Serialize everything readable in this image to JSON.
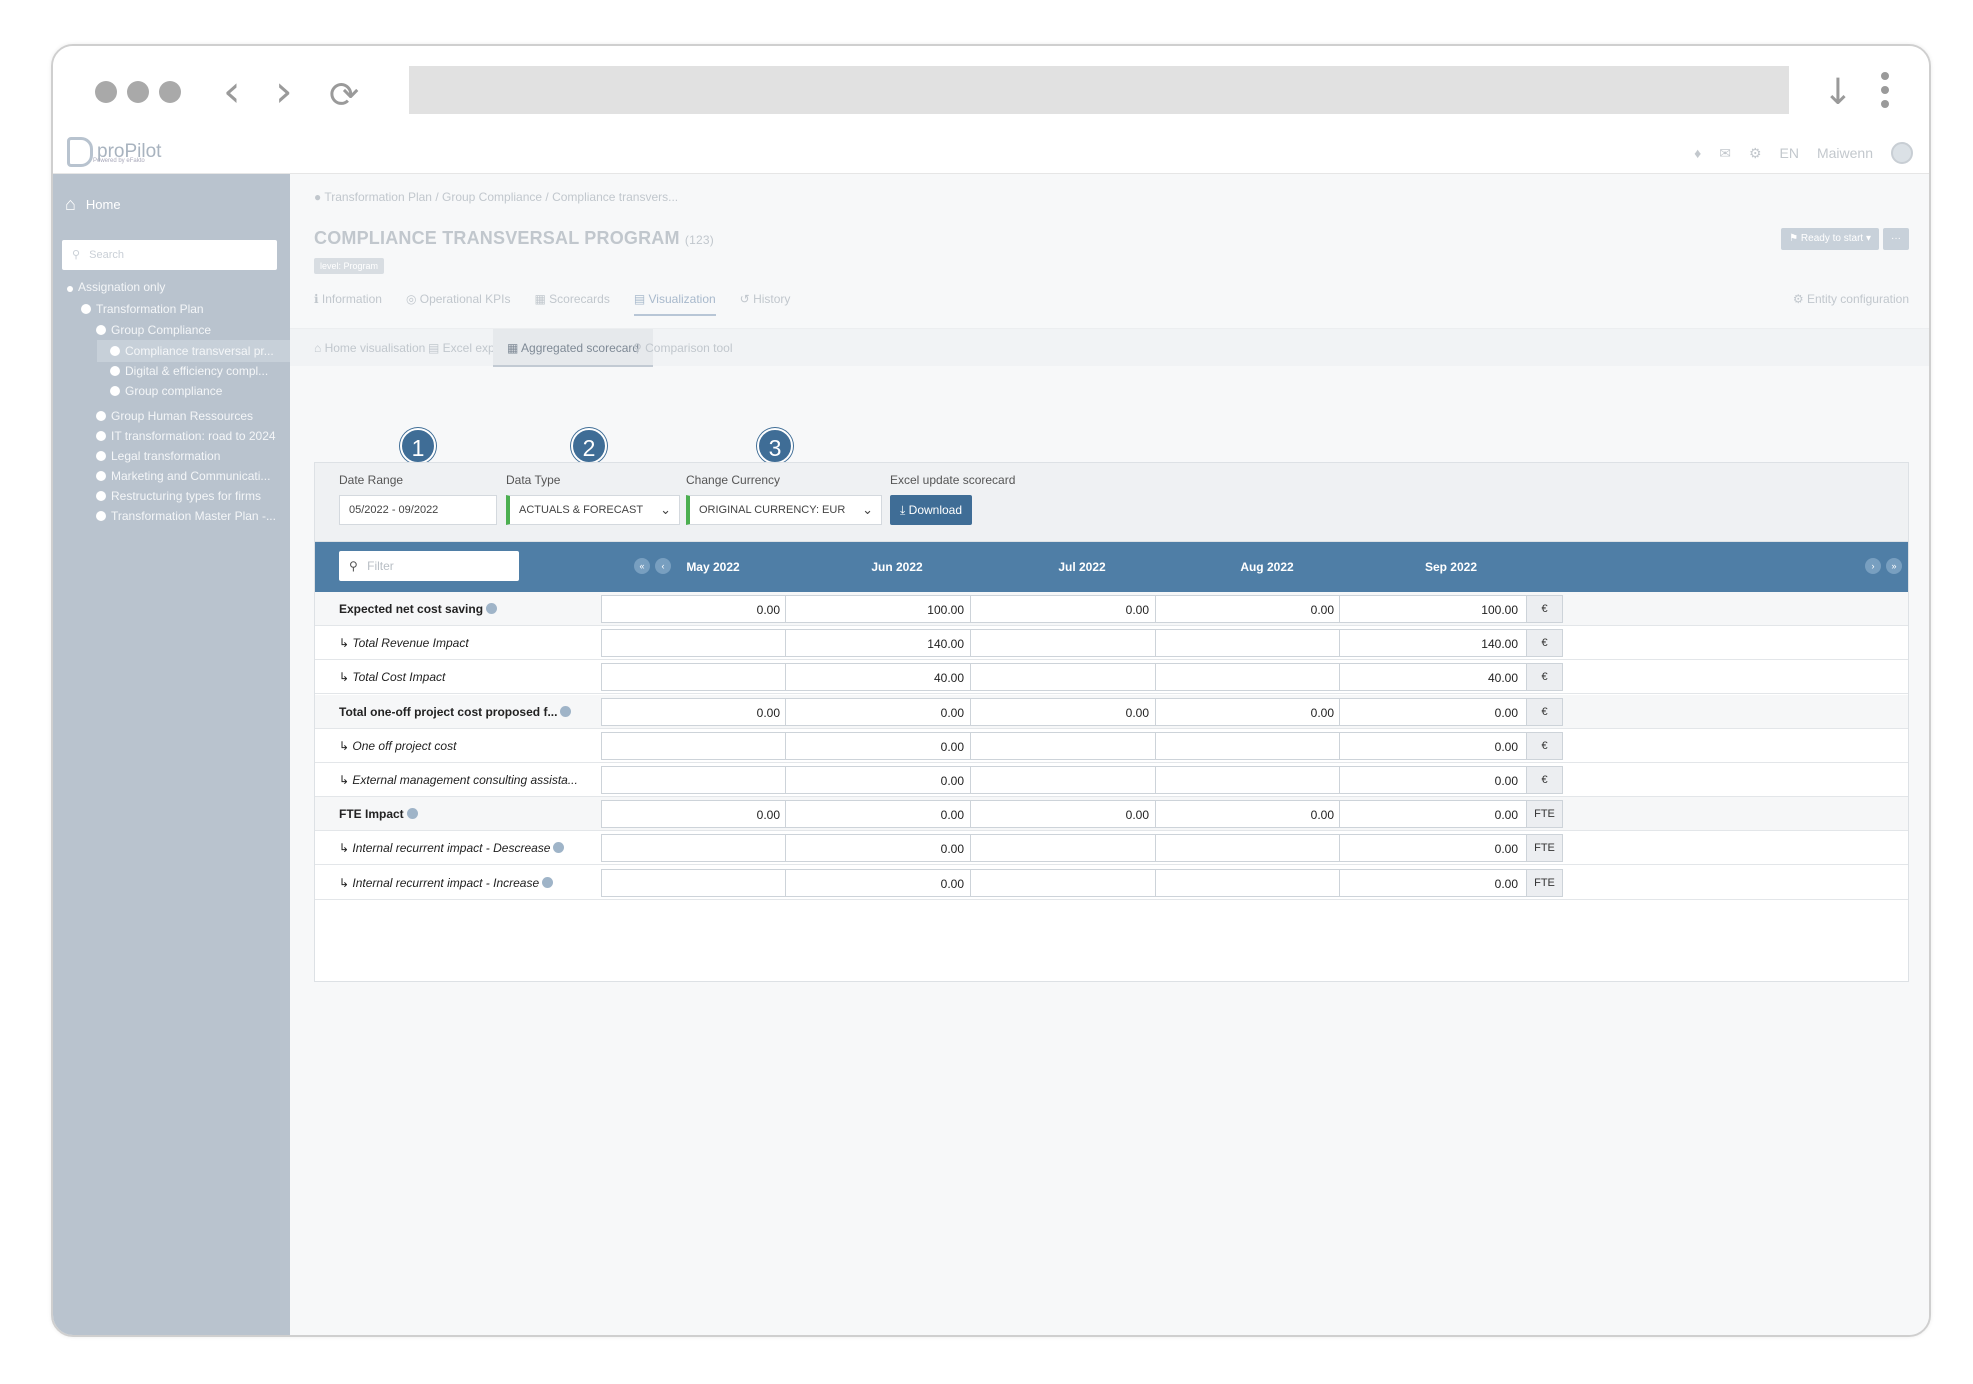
{
  "browser": {
    "dl_icon": "↓",
    "back": "‹",
    "forward": "›",
    "reload": "⟳"
  },
  "app": {
    "logo": "proPilot",
    "logo_sub": "Powered by eFakto",
    "lang": "EN",
    "user": "Maiwenn"
  },
  "sidebar": {
    "home": "Home",
    "search_placeholder": "Search",
    "items": [
      {
        "label": "Assignation only",
        "level": 0
      },
      {
        "label": "Transformation Plan",
        "level": 1
      },
      {
        "label": "Group Compliance",
        "level": 2
      },
      {
        "label": "Compliance transversal pr...",
        "level": 3,
        "selected": true
      },
      {
        "label": "Digital & efficiency compl...",
        "level": 3
      },
      {
        "label": "Group compliance",
        "level": 3
      },
      {
        "label": "Group Human Ressources",
        "level": 2
      },
      {
        "label": "IT transformation: road to 2024",
        "level": 2
      },
      {
        "label": "Legal transformation",
        "level": 2
      },
      {
        "label": "Marketing and Communicati...",
        "level": 2
      },
      {
        "label": "Restructuring types for firms",
        "level": 2
      },
      {
        "label": "Transformation Master Plan -...",
        "level": 2
      }
    ]
  },
  "breadcrumb": {
    "items": [
      "Transformation Plan",
      "Group Compliance",
      "Compliance transvers..."
    ]
  },
  "page": {
    "title": "COMPLIANCE TRANSVERSAL PROGRAM",
    "id": "(123)",
    "level": "level: Program",
    "status": "Ready to start",
    "more": "···"
  },
  "tabs": {
    "primary": [
      "Information",
      "Operational KPIs",
      "Scorecards",
      "Visualization",
      "History"
    ],
    "active_primary": "Visualization",
    "entity_config": "Entity configuration",
    "secondary": [
      "Home visualisation",
      "Excel export",
      "Aggregated scorecard",
      "Comparison tool"
    ],
    "active_secondary": "Aggregated scorecard"
  },
  "annotations": [
    "1",
    "2",
    "3"
  ],
  "filters": {
    "date_range_label": "Date Range",
    "date_range_value": "05/2022 - 09/2022",
    "data_type_label": "Data Type",
    "data_type_value": "ACTUALS & FORECAST",
    "currency_label": "Change Currency",
    "currency_value": "ORIGINAL CURRENCY: EUR",
    "excel_label": "Excel update scorecard",
    "download_label": "Download"
  },
  "table": {
    "filter_placeholder": "Filter",
    "months": [
      "May 2022",
      "Jun 2022",
      "Jul 2022",
      "Aug 2022",
      "Sep 2022"
    ],
    "rows": [
      {
        "label": "Expected net cost saving",
        "bold": true,
        "info": true,
        "unit": "€",
        "values": [
          "0.00",
          "100.00",
          "0.00",
          "0.00",
          "100.00"
        ]
      },
      {
        "label": "Total Revenue Impact",
        "sub": true,
        "unit": "€",
        "values": [
          "",
          "140.00",
          "",
          "",
          "140.00"
        ]
      },
      {
        "label": "Total Cost Impact",
        "sub": true,
        "unit": "€",
        "values": [
          "",
          "40.00",
          "",
          "",
          "40.00"
        ]
      },
      {
        "label": "Total one-off project cost proposed f...",
        "bold": true,
        "info": true,
        "unit": "€",
        "values": [
          "0.00",
          "0.00",
          "0.00",
          "0.00",
          "0.00"
        ]
      },
      {
        "label": "One off project cost",
        "sub": true,
        "unit": "€",
        "values": [
          "",
          "0.00",
          "",
          "",
          "0.00"
        ]
      },
      {
        "label": "External management consulting assista...",
        "sub": true,
        "unit": "€",
        "values": [
          "",
          "0.00",
          "",
          "",
          "0.00"
        ]
      },
      {
        "label": "FTE Impact",
        "bold": true,
        "info": true,
        "unit": "FTE",
        "values": [
          "0.00",
          "0.00",
          "0.00",
          "0.00",
          "0.00"
        ]
      },
      {
        "label": "Internal recurrent impact - Descrease",
        "sub": true,
        "info": true,
        "unit": "FTE",
        "values": [
          "",
          "0.00",
          "",
          "",
          "0.00"
        ]
      },
      {
        "label": "Internal recurrent impact - Increase",
        "sub": true,
        "info": true,
        "unit": "FTE",
        "values": [
          "",
          "0.00",
          "",
          "",
          "0.00"
        ]
      }
    ]
  }
}
